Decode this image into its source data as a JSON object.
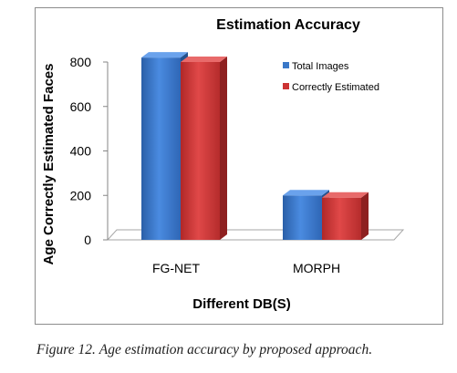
{
  "chart_data": {
    "type": "bar",
    "title": "Estimation Accuracy",
    "xlabel": "Different DB(S)",
    "ylabel": "Age Correctly Estimated Faces",
    "categories": [
      "FG-NET",
      "MORPH"
    ],
    "series": [
      {
        "name": "Total Images",
        "values": [
          820,
          200
        ],
        "color": "#3a78c8"
      },
      {
        "name": "Correctly Estimated",
        "values": [
          800,
          190
        ],
        "color": "#cc3333"
      }
    ],
    "ylim": [
      0,
      800
    ],
    "yticks": [
      "0",
      "200",
      "400",
      "600",
      "800"
    ],
    "grid": false,
    "legend_position": "top-right",
    "style": "3d"
  },
  "caption": {
    "label": "Figure 12.",
    "text": "Age estimation accuracy by proposed approach."
  }
}
